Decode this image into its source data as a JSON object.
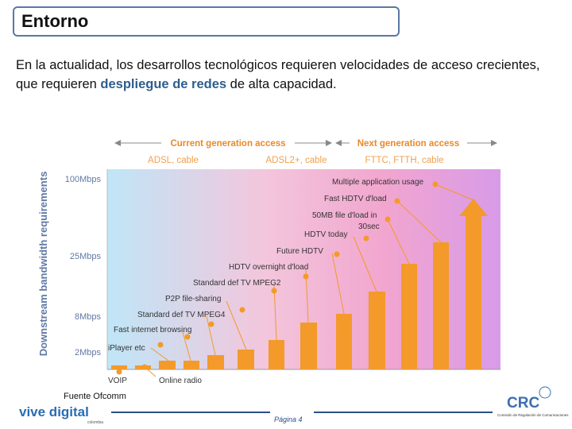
{
  "header": {
    "title": "Entorno"
  },
  "body": {
    "text_before": "En la actualidad, los desarrollos tecnológicos requieren velocidades de acceso crecientes, que requieren ",
    "highlight": "despliegue de redes",
    "text_after": " de alta capacidad."
  },
  "figure": {
    "top_labels": [
      "Current generation access",
      "Next generation access"
    ],
    "technologies": [
      "ADSL, cable",
      "ADSL2+, cable",
      "FTTC, FTTH, cable"
    ],
    "y_axis_title": "Downstream bandwidth requirements",
    "y_labels": [
      "100Mbps",
      "25Mbps",
      "8Mbps",
      "2Mbps"
    ],
    "applications": [
      "VOIP",
      "Online radio",
      "iPlayer etc",
      "Fast internet browsing",
      "Standard def TV MPEG4",
      "P2P file-sharing",
      "Standard def TV MPEG2",
      "HDTV overnight d'load",
      "Future HDTV",
      "HDTV today",
      "50MB file d'load in",
      "30sec",
      "Fast HDTV d'load",
      "Multiple application usage"
    ],
    "source": "Fuente Ofcomm"
  },
  "footer": {
    "logo_text": "vive digital",
    "logo_sub": "colombia",
    "page": "Página 4",
    "crc": "CRC",
    "crc_sub": "Comisión de Regulación de Comunicaciones"
  }
}
